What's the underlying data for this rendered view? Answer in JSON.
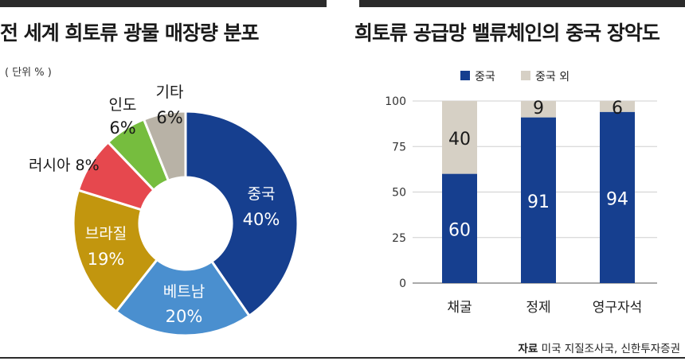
{
  "left_title": "전 세계 희토류 광물 매장량 분포",
  "right_title": "희토류 공급망 밸류체인의 중국 장악도",
  "source": {
    "label": "자료",
    "text": "미국 지질조사국, 신한투자증권"
  },
  "chart_data": [
    {
      "type": "pie",
      "title": "전 세계 희토류 광물 매장량 분포",
      "unit_label": "( 단위 % )",
      "slices": [
        {
          "name": "중국",
          "value": 40,
          "label": "40%",
          "color": "#163f8f"
        },
        {
          "name": "베트남",
          "value": 20,
          "label": "20%",
          "color": "#4a8fcf"
        },
        {
          "name": "브라질",
          "value": 19,
          "label": "19%",
          "color": "#c2960e"
        },
        {
          "name": "러시아",
          "value": 8,
          "label": "8%",
          "color": "#e6484e"
        },
        {
          "name": "인도",
          "value": 6,
          "label": "6%",
          "color": "#76bd3e"
        },
        {
          "name": "기타",
          "value": 6,
          "label": "6%",
          "color": "#b8b2a6"
        }
      ]
    },
    {
      "type": "bar",
      "stacked": true,
      "title": "희토류 공급망 밸류체인의 중국 장악도",
      "categories": [
        "채굴",
        "정제",
        "영구자석"
      ],
      "series": [
        {
          "name": "중국",
          "values": [
            60,
            91,
            94
          ],
          "color": "#163f8f"
        },
        {
          "name": "중국 외",
          "values": [
            40,
            9,
            6
          ],
          "color": "#d6d0c5"
        }
      ],
      "ylim": [
        0,
        100
      ],
      "yticks": [
        0,
        25,
        50,
        75,
        100
      ],
      "grid": true,
      "legend": "top"
    }
  ]
}
